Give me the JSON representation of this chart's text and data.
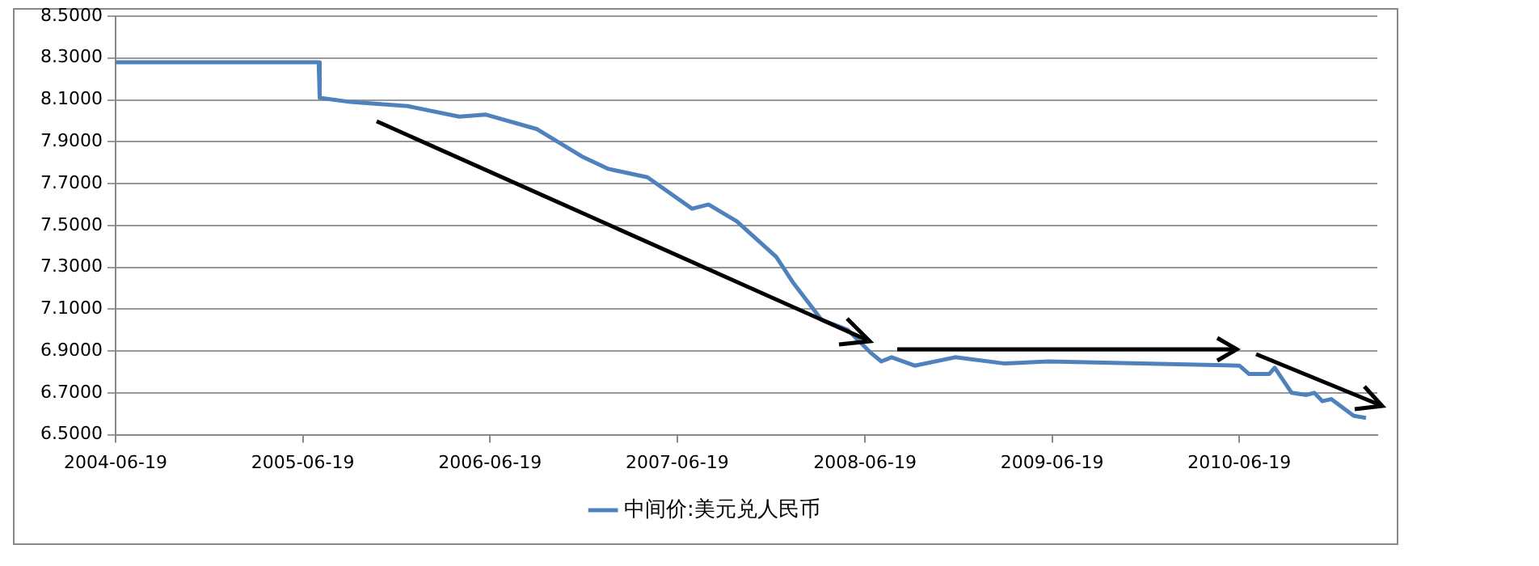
{
  "chart_data": {
    "type": "line",
    "x": [
      "2004-06-19",
      "2005-07-20",
      "2005-07-22",
      "2005-09-20",
      "2006-01-10",
      "2006-04-20",
      "2006-06-10",
      "2006-09-19",
      "2006-10-22",
      "2006-12-15",
      "2007-02-05",
      "2007-04-22",
      "2007-07-18",
      "2007-08-19",
      "2007-10-13",
      "2007-12-29",
      "2008-01-30",
      "2008-03-26",
      "2008-05-17",
      "2008-07-01",
      "2008-07-21",
      "2008-08-10",
      "2008-09-24",
      "2008-12-12",
      "2009-03-19",
      "2009-06-12",
      "2010-06-19",
      "2010-07-08",
      "2010-08-16",
      "2010-08-27",
      "2010-09-29",
      "2010-10-28",
      "2010-11-12",
      "2010-11-28",
      "2010-12-15",
      "2011-01-28",
      "2011-02-21"
    ],
    "series": [
      {
        "name": "中间价:美元兑人民币",
        "color": "#4f81bd",
        "values": [
          8.28,
          8.28,
          8.11,
          8.09,
          8.07,
          8.02,
          8.03,
          7.96,
          7.91,
          7.83,
          7.77,
          7.73,
          7.58,
          7.6,
          7.52,
          7.35,
          7.23,
          7.05,
          7.0,
          6.89,
          6.85,
          6.87,
          6.83,
          6.87,
          6.84,
          6.85,
          6.83,
          6.79,
          6.79,
          6.82,
          6.7,
          6.69,
          6.7,
          6.66,
          6.67,
          6.59,
          6.58
        ]
      }
    ],
    "xlim": [
      "2004-06-19",
      "2011-03-15"
    ],
    "xticks": [
      "2004-06-19",
      "2005-06-19",
      "2006-06-19",
      "2007-06-19",
      "2008-06-19",
      "2009-06-19",
      "2010-06-19"
    ],
    "ylim": [
      6.5,
      8.5
    ],
    "yticks": [
      {
        "value": 6.5,
        "label": "6.5000"
      },
      {
        "value": 6.7,
        "label": "6.7000"
      },
      {
        "value": 6.9,
        "label": "6.9000"
      },
      {
        "value": 7.1,
        "label": "7.1000"
      },
      {
        "value": 7.3,
        "label": "7.3000"
      },
      {
        "value": 7.5,
        "label": "7.5000"
      },
      {
        "value": 7.7,
        "label": "7.7000"
      },
      {
        "value": 7.9,
        "label": "7.9000"
      },
      {
        "value": 8.1,
        "label": "8.1000"
      },
      {
        "value": 8.3,
        "label": "8.3000"
      },
      {
        "value": 8.5,
        "label": "8.5000"
      }
    ],
    "grid": "y",
    "legend": "bottom",
    "marker": "none"
  }
}
